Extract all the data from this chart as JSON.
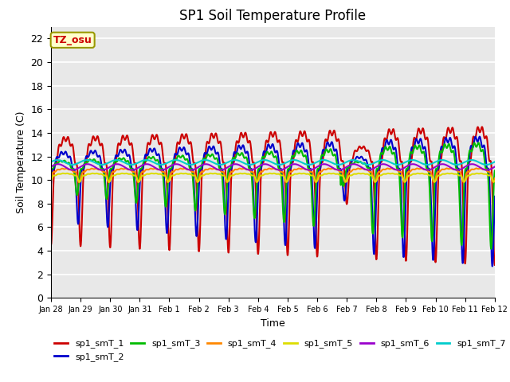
{
  "title": "SP1 Soil Temperature Profile",
  "xlabel": "Time",
  "ylabel": "Soil Temperature (C)",
  "annotation": "TZ_osu",
  "annotation_color": "#cc0000",
  "annotation_bg": "#ffffcc",
  "annotation_border": "#999900",
  "ylim": [
    0,
    23
  ],
  "yticks": [
    0,
    2,
    4,
    6,
    8,
    10,
    12,
    14,
    16,
    18,
    20,
    22
  ],
  "series": [
    {
      "label": "sp1_smT_1",
      "color": "#cc0000",
      "linewidth": 1.5
    },
    {
      "label": "sp1_smT_2",
      "color": "#0000cc",
      "linewidth": 1.5
    },
    {
      "label": "sp1_smT_3",
      "color": "#00bb00",
      "linewidth": 1.5
    },
    {
      "label": "sp1_smT_4",
      "color": "#ff8800",
      "linewidth": 1.5
    },
    {
      "label": "sp1_smT_5",
      "color": "#dddd00",
      "linewidth": 1.5
    },
    {
      "label": "sp1_smT_6",
      "color": "#9900cc",
      "linewidth": 1.5
    },
    {
      "label": "sp1_smT_7",
      "color": "#00cccc",
      "linewidth": 1.5
    }
  ],
  "xtick_labels": [
    "Jan 28",
    "Jan 29",
    "Jan 30",
    "Jan 31",
    "Feb 1",
    "Feb 2",
    "Feb 3",
    "Feb 4",
    "Feb 5",
    "Feb 6",
    "Feb 7",
    "Feb 8",
    "Feb 9",
    "Feb 10",
    "Feb 11",
    "Feb 12"
  ],
  "n_days": 15,
  "points_per_day": 96,
  "background_color": "#e8e8e8",
  "grid_color": "#ffffff",
  "fig_bg": "#ffffff"
}
